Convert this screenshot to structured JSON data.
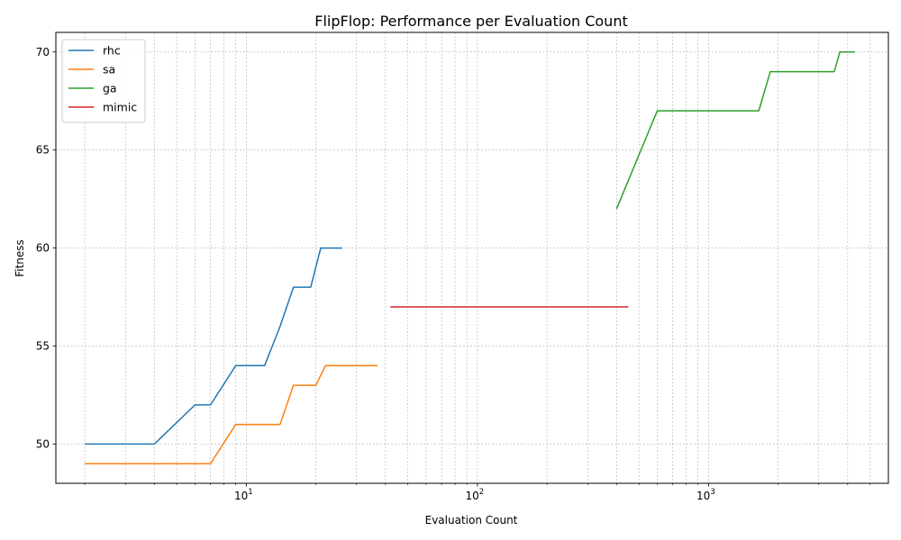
{
  "chart_data": {
    "type": "line",
    "title": "FlipFlop: Performance per Evaluation Count",
    "xlabel": "Evaluation Count",
    "ylabel": "Fitness",
    "xscale": "log",
    "xlim": [
      1.5,
      6000
    ],
    "ylim": [
      48,
      71
    ],
    "xticks": [
      {
        "value": 10,
        "base": "10",
        "exp": "1"
      },
      {
        "value": 100,
        "base": "10",
        "exp": "2"
      },
      {
        "value": 1000,
        "base": "10",
        "exp": "3"
      }
    ],
    "yticks": [
      50,
      55,
      60,
      65,
      70
    ],
    "grid": true,
    "legend_position": "top-left",
    "series": [
      {
        "name": "rhc",
        "color": "#1f77b4",
        "points": [
          [
            2,
            50
          ],
          [
            4,
            50
          ],
          [
            6,
            52
          ],
          [
            7,
            52
          ],
          [
            9,
            54
          ],
          [
            12,
            54
          ],
          [
            14,
            56
          ],
          [
            16,
            58
          ],
          [
            19,
            58
          ],
          [
            21,
            60
          ],
          [
            26,
            60
          ]
        ]
      },
      {
        "name": "sa",
        "color": "#ff7f0e",
        "points": [
          [
            2,
            49
          ],
          [
            7,
            49
          ],
          [
            9,
            51
          ],
          [
            14,
            51
          ],
          [
            16,
            53
          ],
          [
            20,
            53
          ],
          [
            22,
            54
          ],
          [
            37,
            54
          ]
        ]
      },
      {
        "name": "ga",
        "color": "#2ca02c",
        "points": [
          [
            400,
            62
          ],
          [
            600,
            67
          ],
          [
            1650,
            67
          ],
          [
            1850,
            69
          ],
          [
            3500,
            69
          ],
          [
            3700,
            70
          ],
          [
            4300,
            70
          ]
        ]
      },
      {
        "name": "mimic",
        "color": "#d62728",
        "points": [
          [
            42,
            57
          ],
          [
            450,
            57
          ]
        ]
      }
    ]
  }
}
